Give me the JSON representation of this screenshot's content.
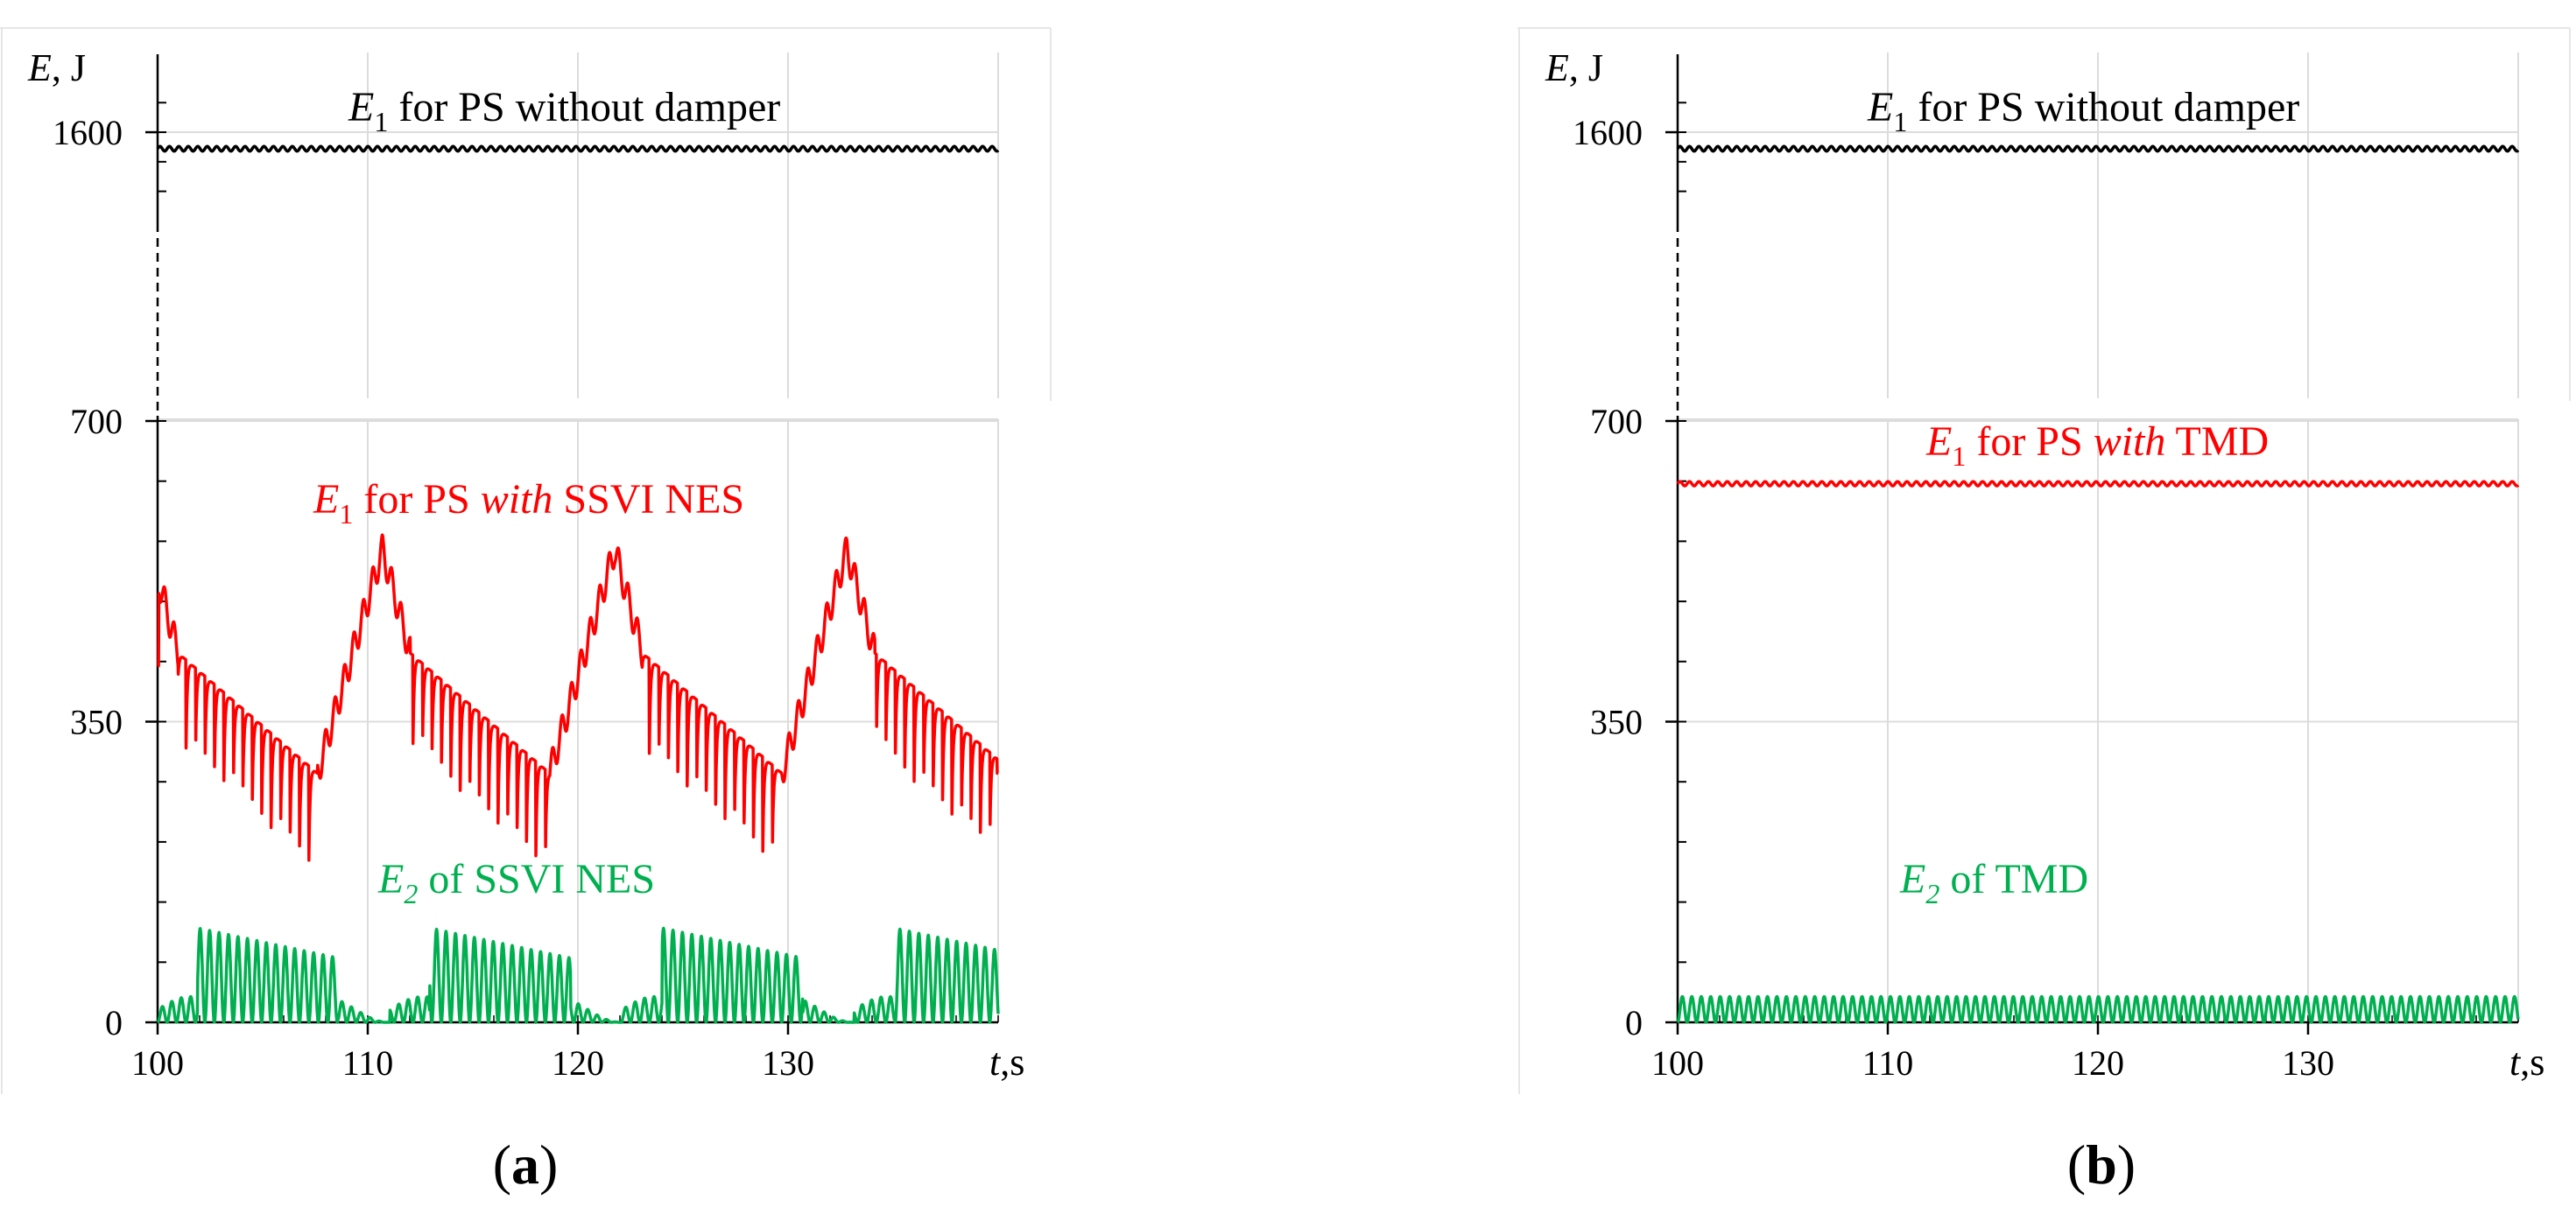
{
  "chart_data": [
    {
      "type": "line",
      "panel_label": "(a)",
      "y_axis_label": "E, J",
      "x_axis_label": "t,s",
      "x_ticks": [
        "100",
        "110",
        "120",
        "130"
      ],
      "xlim": [
        100,
        140
      ],
      "y_axis_break": true,
      "y_ticks_lower": [
        "0",
        "350",
        "700"
      ],
      "y_ticks_upper": [
        "1600"
      ],
      "ylim_lower": [
        0,
        700
      ],
      "ylim_upper": [
        1150,
        1720
      ],
      "grid": true,
      "annotations": [
        {
          "id": "e1_free",
          "sym": "E",
          "sub": "1",
          "sub_italic": false,
          "parts": [
            {
              "text": " for PS without damper",
              "italic": false
            }
          ],
          "color": "#000000"
        },
        {
          "id": "e1_damped",
          "sym": "E",
          "sub": "1",
          "sub_italic": false,
          "parts": [
            {
              "text": " for PS ",
              "italic": false
            },
            {
              "text": "with",
              "italic": true
            },
            {
              "text": " SSVI NES",
              "italic": false
            }
          ],
          "color": "#ff0000"
        },
        {
          "id": "e2",
          "sym": "E",
          "sub": "2",
          "sub_italic": true,
          "parts": [
            {
              "text": " of  SSVI NES",
              "italic": false
            }
          ],
          "color": "#00b050"
        }
      ],
      "series": [
        {
          "key": "e1_free",
          "color": "#000000",
          "model": "const_ripple",
          "mean": 1572,
          "amp": 4,
          "period": 0.45
        },
        {
          "key": "e1_damped",
          "color": "#ff0000",
          "model": "beating_sawtooth",
          "cycle_period": 11.05,
          "phase_start": 0.35,
          "peak": 550,
          "trough_min": 290,
          "start_value": 415,
          "end_value": 290,
          "drop_depth": 110,
          "drop_period": 0.45
        },
        {
          "key": "e2",
          "color": "#00b050",
          "model": "beating_pulses",
          "cycle_period": 11.05,
          "active_start": 1.9,
          "active_end": 8.6,
          "amp_high": 110,
          "amp_low": 75,
          "pulse_period": 0.45,
          "quiet_amp": 30
        }
      ]
    },
    {
      "type": "line",
      "panel_label": "(b)",
      "y_axis_label": "E, J",
      "x_axis_label": "t,s",
      "x_ticks": [
        "100",
        "110",
        "120",
        "130"
      ],
      "xlim": [
        100,
        140
      ],
      "y_axis_break": true,
      "y_ticks_lower": [
        "0",
        "350",
        "700"
      ],
      "y_ticks_upper": [
        "1600"
      ],
      "ylim_lower": [
        0,
        700
      ],
      "ylim_upper": [
        1150,
        1720
      ],
      "grid": true,
      "annotations": [
        {
          "id": "e1_free",
          "sym": "E",
          "sub": "1",
          "sub_italic": false,
          "parts": [
            {
              "text": " for PS without damper",
              "italic": false
            }
          ],
          "color": "#000000"
        },
        {
          "id": "e1_damped",
          "sym": "E",
          "sub": "1",
          "sub_italic": false,
          "parts": [
            {
              "text": " for PS ",
              "italic": false
            },
            {
              "text": "with",
              "italic": true
            },
            {
              "text": " TMD",
              "italic": false
            }
          ],
          "color": "#ff0000"
        },
        {
          "id": "e2",
          "sym": "E",
          "sub": "2",
          "sub_italic": true,
          "parts": [
            {
              "text": " of  TMD",
              "italic": false
            }
          ],
          "color": "#00b050"
        }
      ],
      "series": [
        {
          "key": "e1_free",
          "color": "#000000",
          "model": "const_ripple",
          "mean": 1572,
          "amp": 4,
          "period": 0.45
        },
        {
          "key": "e1_damped",
          "color": "#ff0000",
          "model": "const_ripple",
          "mean": 627,
          "amp": 2.5,
          "period": 0.45
        },
        {
          "key": "e2",
          "color": "#00b050",
          "model": "const_pulses",
          "amp": 30,
          "pulse_period": 0.45
        }
      ]
    }
  ]
}
